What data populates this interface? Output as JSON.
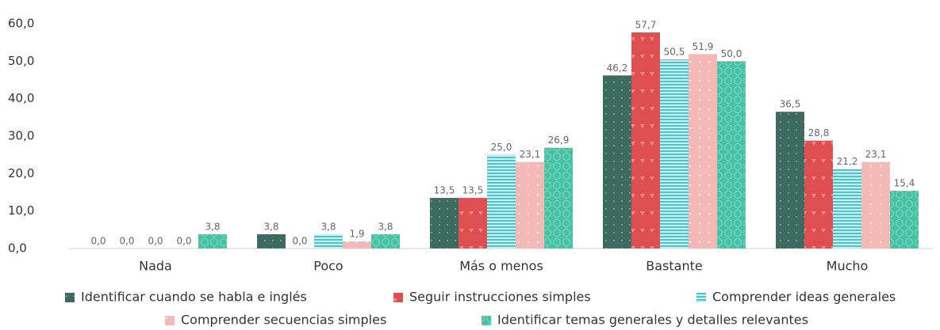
{
  "chart_data": {
    "type": "bar",
    "categories": [
      "Nada",
      "Poco",
      "Más o menos",
      "Bastante",
      "Mucho"
    ],
    "series": [
      {
        "name": "Identificar cuando se habla e inglés",
        "color": "#3e6b5f",
        "values": [
          0.0,
          3.8,
          13.5,
          46.2,
          36.5
        ],
        "value_labels": [
          "0,0",
          "3,8",
          "13,5",
          "46,2",
          "36,5"
        ]
      },
      {
        "name": "Seguir instrucciones simples",
        "color": "#de4f51",
        "values": [
          0.0,
          0.0,
          13.5,
          57.7,
          28.8
        ],
        "value_labels": [
          "0,0",
          "0,0",
          "13,5",
          "57,7",
          "28,8"
        ]
      },
      {
        "name": "Comprender ideas generales",
        "color": "#4cc4c8",
        "values": [
          0.0,
          3.8,
          25.0,
          50.5,
          21.2
        ],
        "value_labels": [
          "0,0",
          "3,8",
          "25,0",
          "50,5",
          "21,2"
        ]
      },
      {
        "name": "Comprender secuencias simples",
        "color": "#f4b8b6",
        "values": [
          0.0,
          1.9,
          23.1,
          51.9,
          23.1
        ],
        "value_labels": [
          "0,0",
          "1,9",
          "23,1",
          "51,9",
          "23,1"
        ]
      },
      {
        "name": "Identificar temas generales y detalles relevantes",
        "color": "#45c1a4",
        "values": [
          3.8,
          3.8,
          26.9,
          50.0,
          15.4
        ],
        "value_labels": [
          "3,8",
          "3,8",
          "26,9",
          "50,0",
          "15,4"
        ]
      }
    ],
    "ylim": [
      0,
      60
    ],
    "yticks": [
      {
        "value": 0,
        "label": "0,0"
      },
      {
        "value": 10,
        "label": "10,0"
      },
      {
        "value": 20,
        "label": "20,0"
      },
      {
        "value": 30,
        "label": "30,0"
      },
      {
        "value": 40,
        "label": "40,0"
      },
      {
        "value": 50,
        "label": "50,0"
      },
      {
        "value": 60,
        "label": "60,0"
      }
    ],
    "grid": false
  }
}
